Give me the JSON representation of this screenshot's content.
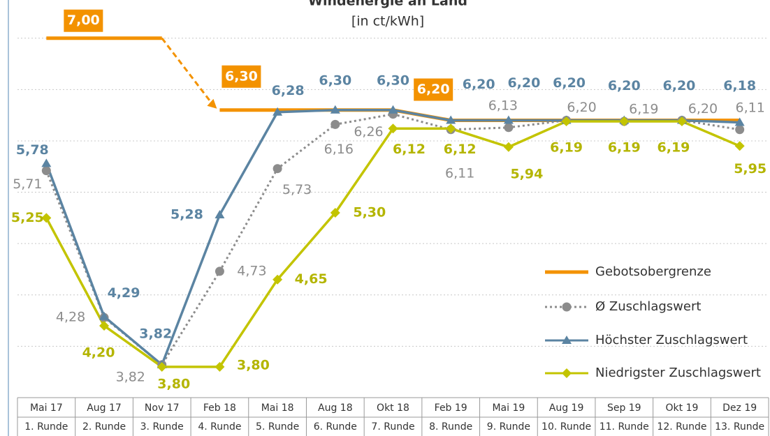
{
  "chart_data": {
    "type": "line",
    "title": "Windenergie an Land",
    "subtitle": "[in ct/kWh]",
    "categories": [
      "Mai 17",
      "Aug 17",
      "Nov 17",
      "Feb 18",
      "Mai 18",
      "Aug 18",
      "Okt 18",
      "Feb 19",
      "Mai 19",
      "Aug 19",
      "Sep 19",
      "Okt 19",
      "Dez 19"
    ],
    "rounds": [
      "1. Runde",
      "2. Runde",
      "3. Runde",
      "4. Runde",
      "5. Runde",
      "6. Runde",
      "7. Runde",
      "8. Runde",
      "9. Runde",
      "10. Runde",
      "11. Runde",
      "12. Runde",
      "13. Runde"
    ],
    "ylim": [
      3.5,
      7.1
    ],
    "yticks": [
      4.0,
      4.5,
      5.0,
      5.5,
      6.0,
      6.5,
      7.0
    ],
    "grid": true,
    "series": [
      {
        "name": "Gebotsobergrenze",
        "color": "#f39200",
        "values": [
          7.0,
          7.0,
          7.0,
          6.3,
          6.3,
          6.3,
          6.3,
          6.2,
          6.2,
          6.2,
          6.2,
          6.2,
          6.2
        ],
        "value_labels": [
          "7,00",
          null,
          null,
          "6,30",
          null,
          null,
          null,
          "6,20",
          null,
          null,
          null,
          null,
          null
        ]
      },
      {
        "name": "Ø Zuschlagswert",
        "color": "#8c8c8c",
        "values": [
          5.71,
          4.28,
          3.82,
          4.73,
          5.73,
          6.16,
          6.26,
          6.11,
          6.13,
          6.2,
          6.19,
          6.2,
          6.11
        ],
        "value_labels": [
          "5,71",
          "4,28",
          "3,82",
          "4,73",
          "5,73",
          "6,16",
          "6,26",
          "6,11",
          "6,13",
          "6,20",
          "6,19",
          "6,20",
          "6,11"
        ]
      },
      {
        "name": "Höchster Zuschlagswert",
        "color": "#5b84a2",
        "values": [
          5.78,
          4.29,
          3.82,
          5.28,
          6.28,
          6.3,
          6.3,
          6.2,
          6.2,
          6.2,
          6.2,
          6.2,
          6.18
        ],
        "value_labels": [
          "5,78",
          "4,29",
          "3,82",
          "5,28",
          "6,28",
          "6,30",
          "6,30",
          "6,20",
          "6,20",
          "6,20",
          "6,20",
          "6,20",
          "6,18"
        ]
      },
      {
        "name": "Niedrigster Zuschlagswert",
        "color": "#c3c400",
        "values": [
          5.25,
          4.2,
          3.8,
          3.8,
          4.65,
          5.3,
          6.12,
          6.12,
          5.94,
          6.19,
          6.19,
          6.19,
          5.95
        ],
        "value_labels": [
          "5,25",
          "4,20",
          "3,80",
          "3,80",
          "4,65",
          "5,30",
          "6,12",
          "6,12",
          "5,94",
          "6,19",
          "6,19",
          "6,19",
          "5,95"
        ]
      }
    ]
  }
}
